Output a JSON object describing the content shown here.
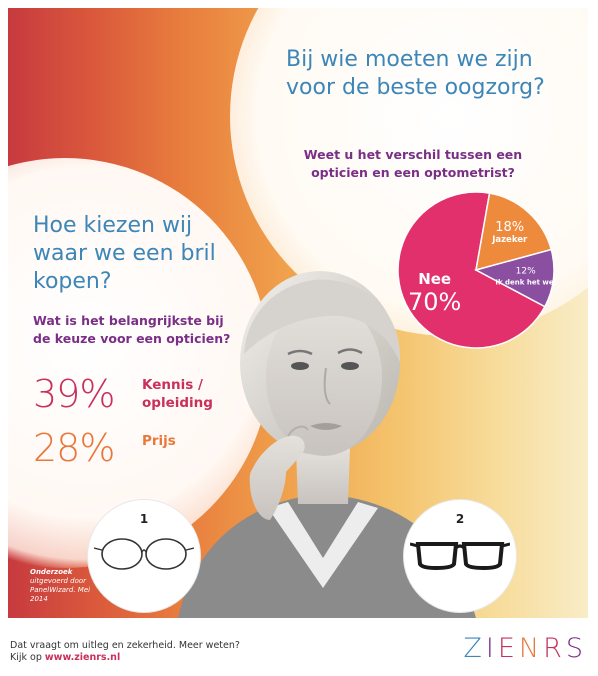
{
  "right_section": {
    "title": "Bij wie moeten we zijn voor de beste oogzorg?",
    "question": "Weet u het verschil tussen een opticien en een optometrist?",
    "pie": {
      "slices": [
        {
          "label": "Nee",
          "value": 70,
          "value_text": "70%",
          "color": "#e2306c"
        },
        {
          "label": "Jazeker",
          "value": 18,
          "value_text": "18%",
          "color": "#ee8a3c"
        },
        {
          "label": "Ik denk het wel",
          "value": 12,
          "value_text": "12%",
          "color": "#8a4fa0"
        }
      ]
    }
  },
  "left_section": {
    "title": "Hoe kiezen wij waar we een bril kopen?",
    "question": "Wat is het belangrijkste bij de keuze voor een opticien?",
    "stats": [
      {
        "value": "39%",
        "label": "Kennis / opleiding",
        "color": "#c9305a"
      },
      {
        "value": "28%",
        "label": "Prijs",
        "color": "#e8783a"
      }
    ]
  },
  "glasses": [
    {
      "number": "1",
      "icon": "round-wire-glasses-icon"
    },
    {
      "number": "2",
      "icon": "rectangular-black-glasses-icon"
    }
  ],
  "research_note": {
    "title": "Onderzoek",
    "text": "uitgevoerd door PanelWizard. Mei 2014"
  },
  "footer": {
    "line1": "Dat vraagt om uitleg en zekerheid. Meer weten?",
    "line2_prefix": "Kijk op ",
    "url": "www.zienrs.nl"
  },
  "logo": {
    "letters": [
      {
        "char": "Z",
        "color": "#3d86b8"
      },
      {
        "char": "I",
        "color": "#7a2f86"
      },
      {
        "char": "E",
        "color": "#c9305a"
      },
      {
        "char": "N",
        "color": "#e8783a"
      },
      {
        "char": "R",
        "color": "#c9305a"
      },
      {
        "char": "S",
        "color": "#7a2f86"
      }
    ]
  }
}
